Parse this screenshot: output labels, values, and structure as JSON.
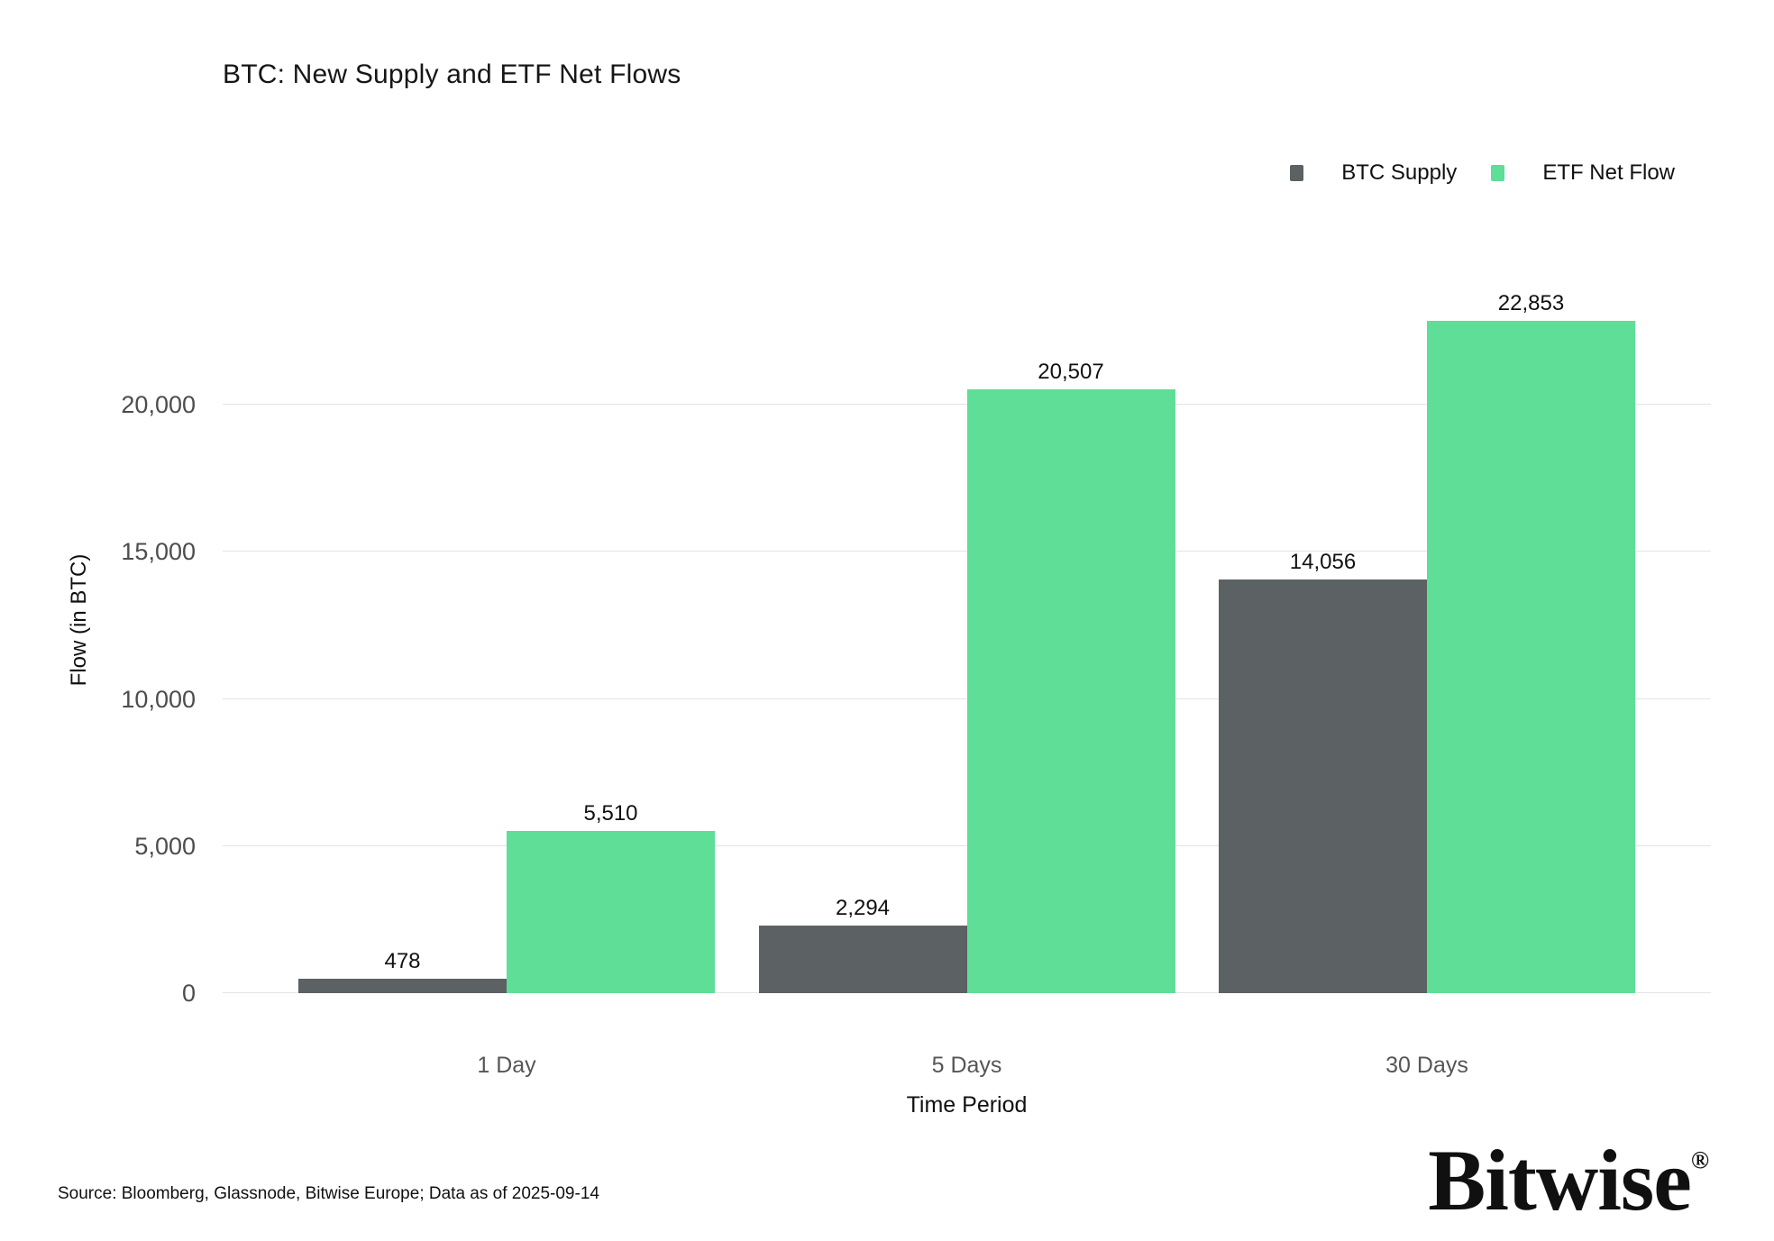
{
  "title": "BTC: New Supply and ETF Net Flows",
  "chart_data": {
    "type": "bar",
    "title": "BTC: New Supply and ETF Net Flows",
    "categories": [
      "1 Day",
      "5 Days",
      "30 Days"
    ],
    "series": [
      {
        "name": "BTC Supply",
        "color": "#5C6164",
        "values": [
          478,
          2294,
          14056
        ],
        "labels": [
          "478",
          "2,294",
          "14,056"
        ]
      },
      {
        "name": "ETF Net Flow",
        "color": "#5EDE97",
        "values": [
          5510,
          20507,
          22853
        ],
        "labels": [
          "5,510",
          "20,507",
          "22,853"
        ]
      }
    ],
    "xlabel": "Time Period",
    "ylabel": "Flow (in BTC)",
    "yticks": [
      0,
      5000,
      10000,
      15000,
      20000
    ],
    "ytick_labels": [
      "0",
      "5,000",
      "10,000",
      "15,000",
      "20,000"
    ],
    "ylim": [
      0,
      24600
    ],
    "grid": true,
    "legend_position": "top-right",
    "data_labels": true
  },
  "footer": {
    "source": "Source: Bloomberg, Glassnode, Bitwise Europe; Data as of 2025-09-14",
    "logo_text": "Bitwise",
    "logo_mark": "®"
  },
  "colors": {
    "background": "#ffffff",
    "grid": "#e4e4e4",
    "bar_gray": "#5C6164",
    "bar_green": "#5EDE97",
    "tick_text": "#4d4d4d",
    "category_text": "#565656",
    "text": "#111111"
  }
}
